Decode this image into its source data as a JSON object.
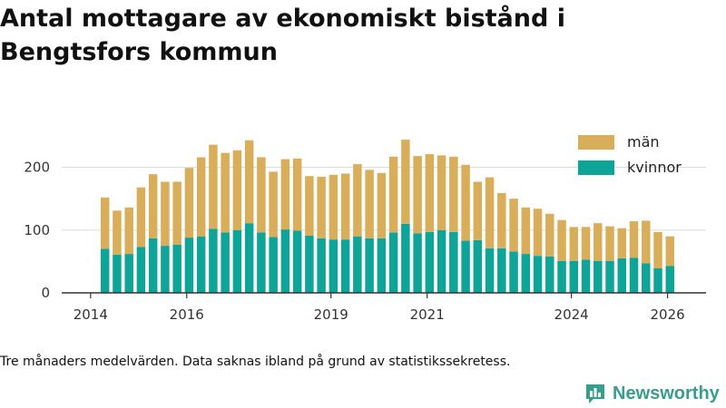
{
  "title": "Antal mottagare av ekonomiskt bistånd i Bengtsfors kommun",
  "footnote": "Tre månaders medelvärden. Data saknas ibland på grund av statistikssekretess.",
  "brand": {
    "name": "Newsworthy",
    "icon": "newsworthy-logo-icon"
  },
  "colors": {
    "man": "#d9ae5b",
    "kvinnor": "#0ea498",
    "grid": "#dddddd",
    "axis": "#333333"
  },
  "chart_data": {
    "type": "bar",
    "stacked": true,
    "title": "Antal mottagare av ekonomiskt bistånd i Bengtsfors kommun",
    "xlabel": "",
    "ylabel": "",
    "ylim": [
      0,
      260
    ],
    "y_ticks": [
      0,
      100,
      200
    ],
    "x_ticks": [
      2014,
      2016,
      2019,
      2021,
      2024,
      2026
    ],
    "legend": {
      "position": "top-right",
      "entries": [
        "män",
        "kvinnor"
      ]
    },
    "categories": [
      "2014-04",
      "2014-07",
      "2014-10",
      "2015-01",
      "2015-04",
      "2015-07",
      "2015-10",
      "2016-01",
      "2016-04",
      "2016-07",
      "2016-10",
      "2017-01",
      "2017-04",
      "2017-07",
      "2017-10",
      "2018-01",
      "2018-04",
      "2018-07",
      "2018-10",
      "2019-01",
      "2019-04",
      "2019-07",
      "2019-10",
      "2020-01",
      "2020-04",
      "2020-07",
      "2020-10",
      "2021-01",
      "2021-04",
      "2021-07",
      "2021-10",
      "2022-01",
      "2022-04",
      "2022-07",
      "2022-10",
      "2023-01",
      "2023-04",
      "2023-07",
      "2023-10",
      "2024-01",
      "2024-04",
      "2024-07",
      "2024-10",
      "2025-01",
      "2025-04",
      "2025-07",
      "2025-10",
      "2026-01"
    ],
    "x": [
      2014.3,
      2014.55,
      2014.8,
      2015.05,
      2015.3,
      2015.55,
      2015.8,
      2016.05,
      2016.3,
      2016.55,
      2016.8,
      2017.05,
      2017.3,
      2017.55,
      2017.8,
      2018.05,
      2018.3,
      2018.55,
      2018.8,
      2019.05,
      2019.3,
      2019.55,
      2019.8,
      2020.05,
      2020.3,
      2020.55,
      2020.8,
      2021.05,
      2021.3,
      2021.55,
      2021.8,
      2022.05,
      2022.3,
      2022.55,
      2022.8,
      2023.05,
      2023.3,
      2023.55,
      2023.8,
      2024.05,
      2024.3,
      2024.55,
      2024.8,
      2025.05,
      2025.3,
      2025.55,
      2025.8,
      2026.05
    ],
    "series": [
      {
        "name": "kvinnor",
        "values": [
          70,
          61,
          62,
          73,
          87,
          75,
          77,
          88,
          90,
          102,
          96,
          100,
          111,
          96,
          89,
          101,
          99,
          91,
          87,
          85,
          85,
          90,
          87,
          87,
          96,
          110,
          95,
          97,
          100,
          97,
          83,
          84,
          71,
          71,
          66,
          62,
          59,
          58,
          51,
          51,
          53,
          51,
          51,
          55,
          56,
          47,
          39,
          43
        ]
      },
      {
        "name": "män",
        "values": [
          82,
          70,
          74,
          95,
          102,
          102,
          100,
          111,
          126,
          134,
          127,
          127,
          132,
          120,
          104,
          112,
          115,
          95,
          98,
          103,
          105,
          115,
          109,
          104,
          121,
          134,
          123,
          124,
          119,
          120,
          121,
          93,
          113,
          88,
          84,
          74,
          75,
          68,
          65,
          54,
          52,
          60,
          55,
          48,
          58,
          68,
          58,
          47
        ]
      }
    ]
  }
}
